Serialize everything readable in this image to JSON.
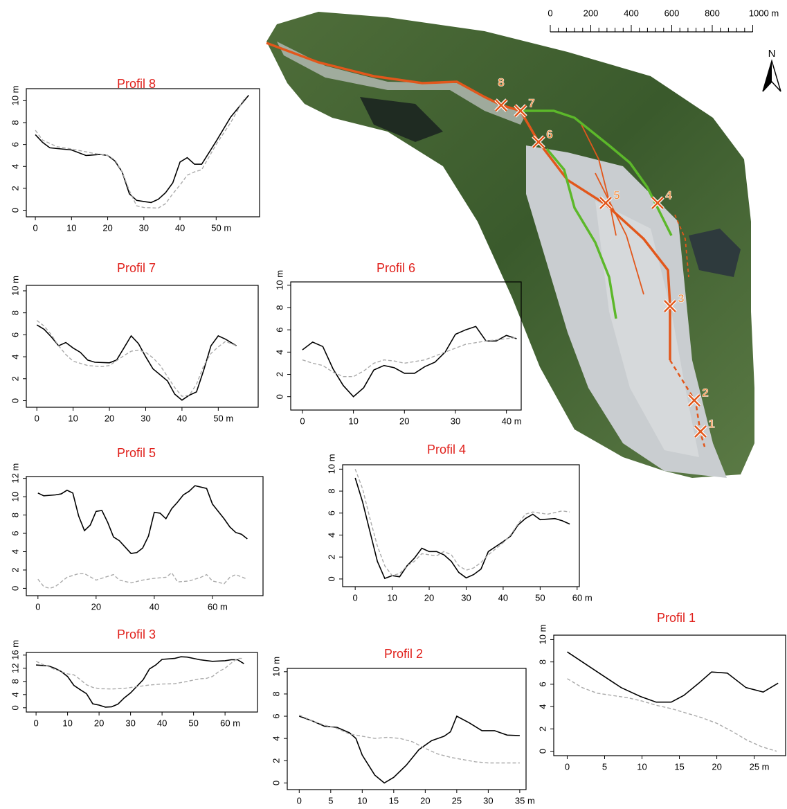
{
  "chart_data": [
    {
      "type": "line",
      "title": "Profil 8",
      "xlim": [
        -2.5,
        62
      ],
      "ylim": [
        -0.6,
        11.1
      ],
      "xticks": [
        0,
        10,
        20,
        30,
        40,
        {
          "value": 50,
          "label": "50 m"
        }
      ],
      "yticks": [
        0,
        2,
        4,
        6,
        8,
        {
          "value": 10,
          "label": "10 m"
        }
      ],
      "series": [
        {
          "color": "#000000",
          "style": "solid",
          "x": [
            0,
            2,
            4,
            10,
            14,
            18,
            20,
            22,
            24,
            26,
            28,
            30,
            32,
            34,
            36,
            38,
            40,
            42,
            44,
            46,
            50,
            54,
            59
          ],
          "values": [
            6.9,
            6.2,
            5.7,
            5.5,
            5.0,
            5.1,
            5.0,
            4.5,
            3.5,
            1.5,
            0.9,
            0.8,
            0.7,
            1.0,
            1.6,
            2.5,
            4.4,
            4.8,
            4.2,
            4.2,
            6.3,
            8.5,
            10.5
          ]
        },
        {
          "color": "#aaaaaa",
          "style": "dashed",
          "x": [
            0,
            2,
            6,
            10,
            16,
            20,
            22,
            24,
            26,
            28,
            30,
            34,
            36,
            38,
            40,
            42,
            44,
            46,
            50,
            54,
            58
          ],
          "values": [
            7.3,
            6.4,
            5.8,
            5.6,
            5.2,
            5.0,
            4.6,
            3.5,
            1.8,
            0.4,
            0.25,
            0.2,
            0.6,
            1.5,
            2.3,
            3.2,
            3.5,
            3.7,
            6.0,
            8.0,
            10.3
          ]
        }
      ]
    },
    {
      "type": "line",
      "title": "Profil 7",
      "xlim": [
        -2.9,
        61
      ],
      "ylim": [
        -0.6,
        10.5
      ],
      "xticks": [
        0,
        10,
        20,
        30,
        40,
        {
          "value": 50,
          "label": "50 m"
        }
      ],
      "yticks": [
        0,
        2,
        4,
        6,
        8,
        {
          "value": 10,
          "label": "10 m"
        }
      ],
      "series": [
        {
          "color": "#000000",
          "style": "solid",
          "x": [
            0,
            2,
            4,
            6,
            8,
            10,
            12,
            14,
            16,
            20,
            22,
            24,
            26,
            28,
            30,
            32,
            36,
            38,
            40,
            42,
            44,
            46,
            48,
            50,
            52,
            55
          ],
          "values": [
            6.9,
            6.5,
            5.8,
            5.0,
            5.3,
            4.8,
            4.4,
            3.7,
            3.5,
            3.45,
            3.7,
            4.8,
            5.9,
            5.2,
            4.0,
            2.9,
            1.8,
            0.6,
            0.05,
            0.5,
            0.8,
            2.8,
            5.0,
            5.9,
            5.6,
            5.0
          ]
        },
        {
          "color": "#aaaaaa",
          "style": "dashed",
          "x": [
            0,
            2,
            4,
            6,
            8,
            10,
            14,
            18,
            20,
            24,
            26,
            28,
            30,
            32,
            34,
            36,
            38,
            40,
            42,
            44,
            46,
            48,
            50,
            52,
            55
          ],
          "values": [
            7.3,
            6.8,
            6.0,
            5.0,
            4.2,
            3.6,
            3.2,
            3.1,
            3.2,
            4.1,
            4.5,
            4.6,
            4.4,
            3.9,
            3.2,
            2.2,
            1.2,
            0.4,
            0.5,
            1.5,
            3.2,
            4.3,
            4.9,
            5.4,
            5.0
          ]
        }
      ]
    },
    {
      "type": "line",
      "title": "Profil 6",
      "xlim": [
        -2.3,
        42.9
      ],
      "ylim": [
        -1.2,
        10.3
      ],
      "xticks": [
        0,
        10,
        20,
        30,
        {
          "value": 40,
          "label": "40 m"
        }
      ],
      "yticks": [
        0,
        2,
        4,
        6,
        8,
        {
          "value": 10,
          "label": "10 m"
        }
      ],
      "series": [
        {
          "color": "#000000",
          "style": "solid",
          "x": [
            0,
            2,
            4,
            6,
            8,
            10,
            12,
            14,
            16,
            18,
            20,
            22,
            24,
            26,
            28,
            30,
            32,
            34,
            36,
            38,
            40,
            42
          ],
          "values": [
            4.2,
            4.9,
            4.5,
            2.5,
            1.0,
            0,
            0.8,
            2.4,
            2.8,
            2.6,
            2.1,
            2.1,
            2.7,
            3.1,
            4.0,
            5.6,
            6.0,
            6.3,
            5.0,
            5.0,
            5.5,
            5.2
          ]
        },
        {
          "color": "#aaaaaa",
          "style": "dashed",
          "x": [
            0,
            2,
            4,
            6,
            8,
            10,
            12,
            14,
            16,
            18,
            20,
            24,
            28,
            32,
            36,
            40,
            42
          ],
          "values": [
            3.3,
            3.0,
            2.8,
            2.2,
            1.8,
            1.8,
            2.3,
            3.0,
            3.3,
            3.2,
            3.0,
            3.3,
            4.0,
            4.7,
            5.0,
            5.2,
            5.3
          ]
        }
      ]
    },
    {
      "type": "line",
      "title": "Profil 5",
      "xlim": [
        -4,
        77.4
      ],
      "ylim": [
        -0.8,
        12.2
      ],
      "xticks": [
        0,
        20,
        40,
        {
          "value": 60,
          "label": "60 m"
        }
      ],
      "yticks": [
        0,
        2,
        4,
        6,
        8,
        10,
        {
          "value": 12,
          "label": "12 m"
        }
      ],
      "series": [
        {
          "color": "#000000",
          "style": "solid",
          "x": [
            0,
            2,
            6,
            8,
            10,
            12,
            14,
            16,
            18,
            20,
            22,
            24,
            26,
            28,
            30,
            32,
            34,
            36,
            38,
            40,
            42,
            44,
            46,
            48,
            50,
            52,
            54,
            58,
            60,
            64,
            66,
            68,
            70,
            72
          ],
          "values": [
            10.4,
            10.1,
            10.2,
            10.3,
            10.7,
            10.4,
            7.9,
            6.3,
            6.9,
            8.4,
            8.5,
            7.2,
            5.6,
            5.2,
            4.5,
            3.8,
            3.9,
            4.4,
            5.7,
            8.3,
            8.2,
            7.6,
            8.7,
            9.4,
            10.2,
            10.6,
            11.2,
            10.9,
            9.2,
            7.6,
            6.7,
            6.1,
            5.9,
            5.4
          ]
        },
        {
          "color": "#aaaaaa",
          "style": "dashed",
          "x": [
            0,
            2,
            4,
            6,
            10,
            14,
            16,
            20,
            24,
            26,
            28,
            32,
            36,
            40,
            44,
            46,
            48,
            52,
            56,
            58,
            60,
            64,
            66,
            68,
            72
          ],
          "values": [
            1.0,
            0.2,
            0.0,
            0.2,
            1.2,
            1.6,
            1.6,
            0.9,
            1.3,
            1.5,
            0.9,
            0.6,
            0.9,
            1.1,
            1.2,
            1.7,
            0.7,
            0.8,
            1.2,
            1.5,
            0.8,
            0.5,
            1.2,
            1.5,
            1.0
          ]
        }
      ]
    },
    {
      "type": "line",
      "title": "Profil 4",
      "xlim": [
        -3.4,
        60.6
      ],
      "ylim": [
        -0.7,
        10.4
      ],
      "xticks": [
        0,
        10,
        20,
        30,
        40,
        50,
        {
          "value": 60,
          "label": "60 m"
        }
      ],
      "yticks": [
        0,
        2,
        4,
        6,
        8,
        {
          "value": 10,
          "label": "10 m"
        }
      ],
      "series": [
        {
          "color": "#000000",
          "style": "solid",
          "x": [
            0,
            2,
            4,
            6,
            8,
            10,
            12,
            14,
            16,
            18,
            20,
            22,
            24,
            26,
            28,
            30,
            32,
            34,
            36,
            40,
            42,
            44,
            46,
            48,
            50,
            54,
            56,
            58
          ],
          "values": [
            9.2,
            7.0,
            4.3,
            1.6,
            0.05,
            0.3,
            0.2,
            1.2,
            1.9,
            2.8,
            2.5,
            2.5,
            2.2,
            1.6,
            0.6,
            0.1,
            0.4,
            0.9,
            2.5,
            3.4,
            3.9,
            4.9,
            5.5,
            5.9,
            5.4,
            5.5,
            5.3,
            5.0
          ]
        },
        {
          "color": "#aaaaaa",
          "style": "dashed",
          "x": [
            0,
            2,
            4,
            6,
            8,
            10,
            12,
            14,
            16,
            18,
            22,
            24,
            26,
            28,
            30,
            32,
            34,
            36,
            40,
            42,
            44,
            46,
            48,
            52,
            56,
            58
          ],
          "values": [
            10.0,
            8.2,
            5.5,
            3.0,
            1.2,
            0.3,
            0.5,
            1.2,
            1.6,
            2.3,
            2.1,
            2.5,
            2.2,
            1.2,
            0.8,
            1.0,
            1.5,
            2.2,
            3.3,
            4.0,
            5.0,
            5.9,
            6.1,
            5.9,
            6.2,
            6.1
          ]
        }
      ]
    },
    {
      "type": "line",
      "title": "Profil 3",
      "xlim": [
        -3.1,
        70.3
      ],
      "ylim": [
        -1.3,
        16.8
      ],
      "xticks": [
        0,
        10,
        20,
        30,
        40,
        50,
        {
          "value": 60,
          "label": "60 m"
        }
      ],
      "yticks": [
        0,
        4,
        8,
        12,
        {
          "value": 16,
          "label": "16 m"
        }
      ],
      "series": [
        {
          "color": "#000000",
          "style": "solid",
          "x": [
            0,
            4,
            6,
            8,
            10,
            12,
            14,
            16,
            18,
            20,
            22,
            24,
            26,
            28,
            30,
            34,
            36,
            38,
            40,
            44,
            46,
            48,
            52,
            56,
            60,
            62,
            64,
            66
          ],
          "values": [
            13.0,
            12.7,
            12.0,
            11.0,
            9.5,
            6.8,
            5.5,
            4.3,
            1.2,
            0.8,
            0.2,
            0.3,
            1.1,
            3.0,
            4.5,
            8.5,
            11.8,
            13.0,
            14.7,
            15.0,
            15.5,
            15.4,
            14.6,
            14.1,
            14.3,
            14.6,
            14.6,
            13.4
          ]
        },
        {
          "color": "#aaaaaa",
          "style": "dashed",
          "x": [
            0,
            2,
            4,
            6,
            8,
            10,
            12,
            14,
            16,
            18,
            20,
            24,
            28,
            32,
            36,
            40,
            44,
            48,
            52,
            54,
            56,
            58,
            60,
            62,
            64,
            66
          ],
          "values": [
            14.1,
            13.2,
            12.5,
            11.6,
            11.0,
            10.3,
            10.0,
            8.6,
            7.0,
            6.2,
            5.8,
            5.7,
            5.9,
            6.4,
            6.9,
            7.2,
            7.3,
            8.0,
            8.8,
            8.9,
            9.5,
            11.0,
            12.0,
            13.6,
            15.0,
            15.0
          ]
        }
      ]
    },
    {
      "type": "line",
      "title": "Profil 2",
      "xlim": [
        -1.9,
        36
      ],
      "ylim": [
        -0.6,
        10.3
      ],
      "xticks": [
        0,
        5,
        10,
        15,
        20,
        25,
        30,
        {
          "value": 35,
          "label": "35 m"
        }
      ],
      "yticks": [
        0,
        2,
        4,
        6,
        8,
        {
          "value": 10,
          "label": "10 m"
        }
      ],
      "series": [
        {
          "color": "#000000",
          "style": "solid",
          "x": [
            0,
            2,
            4,
            6,
            8,
            9,
            10,
            12,
            13.5,
            15,
            17,
            19,
            21,
            23,
            24,
            25,
            27,
            29,
            31,
            32,
            33,
            35
          ],
          "values": [
            6.0,
            5.6,
            5.1,
            5.0,
            4.5,
            4.0,
            2.5,
            0.7,
            0,
            0.5,
            1.6,
            3.0,
            3.8,
            4.2,
            4.6,
            6.0,
            5.4,
            4.7,
            4.7,
            4.5,
            4.3,
            4.25
          ]
        },
        {
          "color": "#aaaaaa",
          "style": "dashed",
          "x": [
            0,
            2,
            4,
            6,
            8,
            10,
            12,
            14,
            16,
            18,
            20,
            22,
            24,
            26,
            28,
            30,
            32,
            35
          ],
          "values": [
            6.1,
            5.6,
            5.2,
            4.9,
            4.4,
            4.2,
            4.0,
            4.1,
            4.0,
            3.7,
            3.1,
            2.6,
            2.3,
            2.1,
            1.9,
            1.8,
            1.8,
            1.8
          ]
        }
      ]
    },
    {
      "type": "line",
      "title": "Profil 1",
      "xlim": [
        -1.8,
        29.2
      ],
      "ylim": [
        -0.4,
        10.4
      ],
      "xticks": [
        0,
        5,
        10,
        15,
        20,
        {
          "value": 25,
          "label": "25 m"
        }
      ],
      "yticks": [
        0,
        2,
        4,
        6,
        8,
        {
          "value": 10,
          "label": "10 m"
        }
      ],
      "series": [
        {
          "color": "#000000",
          "style": "solid",
          "x": [
            0,
            4.5,
            7.2,
            9.8,
            11.9,
            13.9,
            15.6,
            17.6,
            19.3,
            21.4,
            23.9,
            26.2,
            28.2
          ],
          "values": [
            8.9,
            6.9,
            5.7,
            4.9,
            4.4,
            4.4,
            5.0,
            6.1,
            7.1,
            7.0,
            5.7,
            5.3,
            6.1
          ]
        },
        {
          "color": "#aaaaaa",
          "style": "dashed",
          "x": [
            0,
            2,
            4,
            6,
            8,
            10,
            12,
            14,
            16,
            18,
            20,
            22,
            24,
            26,
            28
          ],
          "values": [
            6.5,
            5.7,
            5.2,
            5.0,
            4.8,
            4.5,
            4.1,
            3.8,
            3.4,
            3.0,
            2.5,
            1.8,
            1.0,
            0.4,
            0
          ]
        }
      ]
    }
  ],
  "map": {
    "scale_labels": [
      "0",
      "200",
      "400",
      "600",
      "800",
      "1000 m"
    ],
    "north": "N",
    "markers": [
      "1",
      "2",
      "3",
      "4",
      "5",
      "6",
      "7",
      "8"
    ]
  }
}
